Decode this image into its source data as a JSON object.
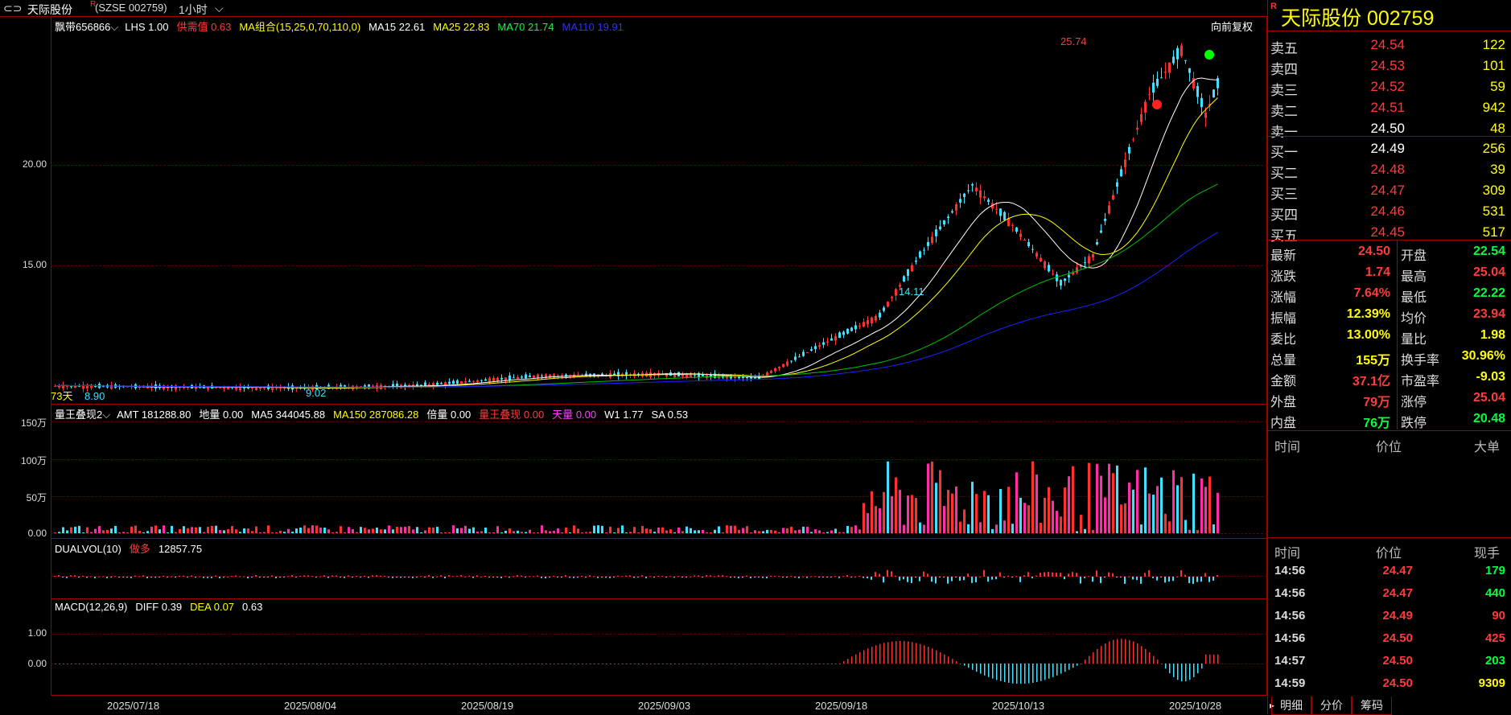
{
  "window": {
    "menu_icon": "⊂⊃",
    "stock_name": "天际股份",
    "sup_mark": "R",
    "code_label": "(SZSE  002759)",
    "period": "1小时",
    "period_chevron": "⌵"
  },
  "main_chart": {
    "legend": {
      "ribbon": "飘带656866",
      "lhs": "LHS 1.00",
      "supply": "供需值 0.63",
      "ma_combo": "MA组合(15,25,0,70,110,0)",
      "ma15": "MA15 22.61",
      "ma25": "MA25 22.83",
      "ma70": "MA70 21.74",
      "ma110": "MA110 19.91"
    },
    "adjust_label": "向前复权",
    "y_ticks": [
      "20.00",
      "15.00"
    ],
    "high_label": "25.74",
    "low_label": "14.11",
    "left_labels": {
      "days": "73天",
      "low1": "8.90",
      "low2": "9.02"
    },
    "colors": {
      "ma15": "#ffffff",
      "ma25": "#ffff00",
      "ma70": "#00c000",
      "ma110": "#2020ff",
      "up": "#ff3030",
      "down": "#40e0ff"
    }
  },
  "volume_panel": {
    "legend": {
      "name": "量王叠现2",
      "amt": "AMT 181288.80",
      "ground": "地量 0.00",
      "ma5": "MA5 344045.88",
      "ma150": "MA150 287086.28",
      "double": "倍量 0.00",
      "king": "量王叠现 0.00",
      "sky": "天量 0.00",
      "w1": "W1 1.77",
      "sa": "SA 0.53"
    },
    "y_ticks": [
      "150万",
      "100万",
      "50万",
      "0.00"
    ]
  },
  "dualvol_panel": {
    "legend": {
      "name": "DUALVOL(10)",
      "label": "做多",
      "value": "12857.75"
    }
  },
  "macd_panel": {
    "legend": {
      "name": "MACD(12,26,9)",
      "diff": "DIFF 0.39",
      "dea": "DEA 0.07",
      "macd": "0.63"
    },
    "y_ticks": [
      "1.00",
      "0.00"
    ]
  },
  "x_axis": [
    "2025/07/18",
    "2025/08/04",
    "2025/08/19",
    "2025/09/03",
    "2025/09/18",
    "2025/10/13",
    "2025/10/28"
  ],
  "quote": {
    "title": "天际股份  002759",
    "r_mark": "R",
    "asks": [
      {
        "label": "卖五",
        "price": "24.54",
        "vol": "122"
      },
      {
        "label": "卖四",
        "price": "24.53",
        "vol": "101"
      },
      {
        "label": "卖三",
        "price": "24.52",
        "vol": "59"
      },
      {
        "label": "卖二",
        "price": "24.51",
        "vol": "942"
      },
      {
        "label": "卖一",
        "price": "24.50",
        "vol": "48"
      }
    ],
    "bids": [
      {
        "label": "买一",
        "price": "24.49",
        "vol": "256"
      },
      {
        "label": "买二",
        "price": "24.48",
        "vol": "39"
      },
      {
        "label": "买三",
        "price": "24.47",
        "vol": "309"
      },
      {
        "label": "买四",
        "price": "24.46",
        "vol": "531"
      },
      {
        "label": "买五",
        "price": "24.45",
        "vol": "517"
      }
    ],
    "stats_left": [
      {
        "k": "最新",
        "v": "24.50"
      },
      {
        "k": "涨跌",
        "v": "1.74"
      },
      {
        "k": "涨幅",
        "v": "7.64%"
      },
      {
        "k": "振幅",
        "v": "12.39%"
      },
      {
        "k": "委比",
        "v": "13.00%"
      },
      {
        "k": "总量",
        "v": "155万"
      },
      {
        "k": "金额",
        "v": "37.1亿"
      },
      {
        "k": "外盘",
        "v": "79万"
      },
      {
        "k": "内盘",
        "v": "76万"
      }
    ],
    "stats_right": [
      {
        "k": "开盘",
        "v": "22.54"
      },
      {
        "k": "最高",
        "v": "25.04"
      },
      {
        "k": "最低",
        "v": "22.22"
      },
      {
        "k": "均价",
        "v": "23.94"
      },
      {
        "k": "量比",
        "v": "1.98"
      },
      {
        "k": "换手率",
        "v": "30.96%"
      },
      {
        "k": "市盈率",
        "v": "-9.03"
      },
      {
        "k": "涨停",
        "v": "25.04"
      },
      {
        "k": "跌停",
        "v": "20.48"
      }
    ],
    "big_header": {
      "time": "时间",
      "price": "价位",
      "vol": "大单"
    },
    "tick_header": {
      "time": "时间",
      "price": "价位",
      "vol": "现手"
    },
    "ticks": [
      {
        "time": "14:56",
        "price": "24.47",
        "vol": "179"
      },
      {
        "time": "14:56",
        "price": "24.47",
        "vol": "440"
      },
      {
        "time": "14:56",
        "price": "24.49",
        "vol": "90"
      },
      {
        "time": "14:56",
        "price": "24.50",
        "vol": "425"
      },
      {
        "time": "14:57",
        "price": "24.50",
        "vol": "203"
      },
      {
        "time": "14:59",
        "price": "24.50",
        "vol": "9309"
      }
    ],
    "tabs": [
      "明细",
      "分价",
      "筹码"
    ],
    "tab_arrow": "▸"
  }
}
